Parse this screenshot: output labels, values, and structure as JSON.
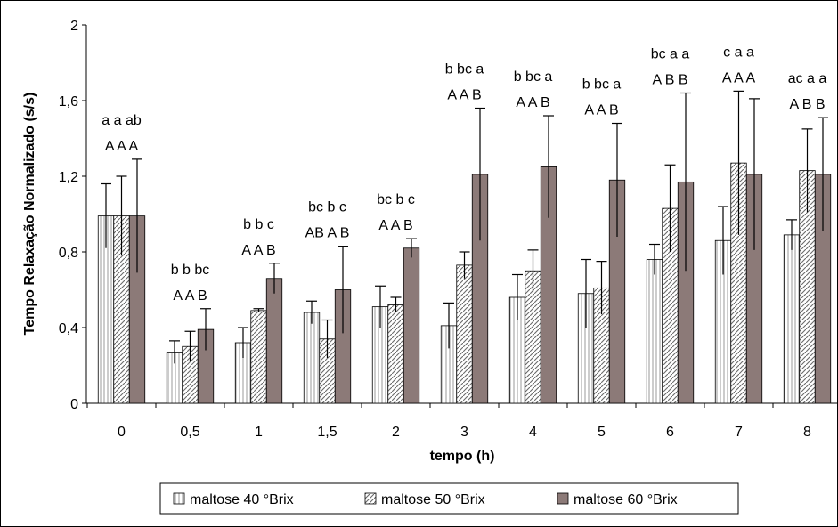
{
  "chart_data": {
    "type": "bar",
    "title": "",
    "xlabel": "tempo (h)",
    "ylabel": "Tempo Relaxação Normalizado (s/s)",
    "ylim": [
      0,
      2
    ],
    "yticks": [
      "0",
      "0,4",
      "0,8",
      "1,2",
      "1,6",
      "2"
    ],
    "categories": [
      "0",
      "0,5",
      "1",
      "1,5",
      "2",
      "3",
      "4",
      "5",
      "6",
      "7",
      "8"
    ],
    "series": [
      {
        "name": "maltose 40 °Brix",
        "fill": "vertical-lines-light",
        "values": [
          0.99,
          0.27,
          0.32,
          0.48,
          0.51,
          0.41,
          0.56,
          0.58,
          0.76,
          0.86,
          0.89
        ],
        "errors": [
          0.17,
          0.06,
          0.08,
          0.06,
          0.11,
          0.12,
          0.12,
          0.18,
          0.08,
          0.18,
          0.08
        ]
      },
      {
        "name": "maltose 50 °Brix",
        "fill": "diagonal-lines",
        "values": [
          0.99,
          0.3,
          0.49,
          0.34,
          0.52,
          0.73,
          0.7,
          0.61,
          1.03,
          1.27,
          1.23
        ],
        "errors": [
          0.21,
          0.08,
          0.01,
          0.1,
          0.04,
          0.07,
          0.11,
          0.14,
          0.23,
          0.38,
          0.22
        ]
      },
      {
        "name": "maltose 60 °Brix",
        "fill": "dark-brown",
        "values": [
          0.99,
          0.39,
          0.66,
          0.6,
          0.82,
          1.21,
          1.25,
          1.18,
          1.17,
          1.21,
          1.21
        ],
        "errors": [
          0.3,
          0.11,
          0.08,
          0.23,
          0.05,
          0.35,
          0.27,
          0.3,
          0.47,
          0.4,
          0.3
        ]
      }
    ],
    "significance": [
      {
        "top": "a a ab",
        "bottom": "A A A"
      },
      {
        "top": "b b bc",
        "bottom": "A A B"
      },
      {
        "top": "b  b  c",
        "bottom": "A A B"
      },
      {
        "top": "bc  b c",
        "bottom": "AB A B"
      },
      {
        "top": "bc b c",
        "bottom": "A A B"
      },
      {
        "top": "b bc a",
        "bottom": "A A B"
      },
      {
        "top": "b bc a",
        "bottom": "A A B"
      },
      {
        "top": "b bc a",
        "bottom": "A A B"
      },
      {
        "top": "bc a a",
        "bottom": "A B B"
      },
      {
        "top": "c a a",
        "bottom": "A A A"
      },
      {
        "top": "ac a a",
        "bottom": "A B B"
      }
    ],
    "legend_position": "bottom",
    "grid": false,
    "colors": {
      "s40": "#e8e8e8",
      "s50_stroke": "#666666",
      "s60": "#8c7a78",
      "error_bar": "#000000"
    }
  }
}
